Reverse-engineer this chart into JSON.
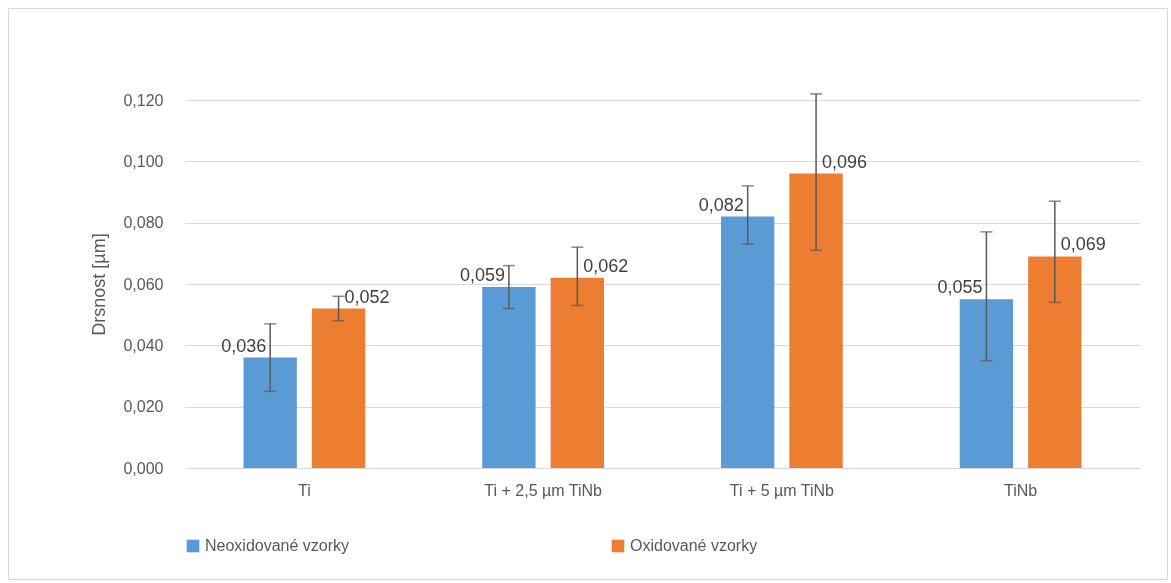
{
  "chart_data": {
    "type": "bar",
    "ylabel": "Drsnost [µm]",
    "categories": [
      "Ti",
      "Ti + 2,5 µm TiNb",
      "Ti + 5 µm TiNb",
      "TiNb"
    ],
    "series": [
      {
        "name": "Neoxidované vzorky",
        "color": "#5b9bd5",
        "values": [
          0.036,
          0.059,
          0.082,
          0.055
        ],
        "errors": [
          [
            0.025,
            0.047
          ],
          [
            0.052,
            0.066
          ],
          [
            0.073,
            0.092
          ],
          [
            0.035,
            0.077
          ]
        ],
        "value_labels": [
          "0,036",
          "0,059",
          "0,082",
          "0,055"
        ]
      },
      {
        "name": "Oxidované vzorky",
        "color": "#ed7d31",
        "values": [
          0.052,
          0.062,
          0.096,
          0.069
        ],
        "errors": [
          [
            0.048,
            0.056
          ],
          [
            0.053,
            0.072
          ],
          [
            0.071,
            0.122
          ],
          [
            0.054,
            0.087
          ]
        ],
        "value_labels": [
          "0,052",
          "0,062",
          "0,096",
          "0,069"
        ]
      }
    ],
    "ylim": [
      0,
      0.12
    ],
    "yticks": [
      {
        "value": 0,
        "label": "0,000"
      },
      {
        "value": 0.02,
        "label": "0,020"
      },
      {
        "value": 0.04,
        "label": "0,040"
      },
      {
        "value": 0.06,
        "label": "0,060"
      },
      {
        "value": 0.08,
        "label": "0,080"
      },
      {
        "value": 0.1,
        "label": "0,100"
      },
      {
        "value": 0.12,
        "label": "0,120"
      }
    ],
    "grid": "y",
    "legend": "bottom"
  }
}
